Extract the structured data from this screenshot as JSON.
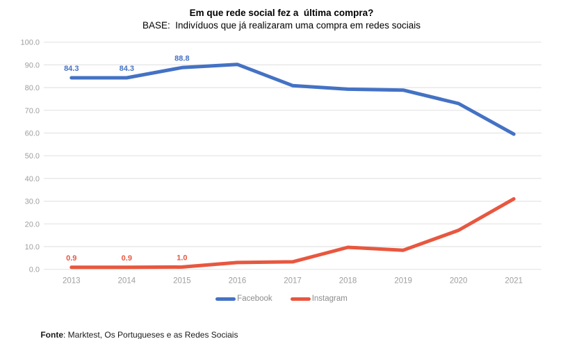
{
  "header": {
    "title": "Em que rede social fez a  última compra?",
    "subtitle": "BASE:  Indivíduos que já realizaram uma compra em redes sociais"
  },
  "chart_data": {
    "type": "line",
    "title": "Em que rede social fez a  última compra?",
    "subtitle": "BASE:  Indivíduos que já realizaram uma compra em redes sociais",
    "categories": [
      "2013",
      "2014",
      "2015",
      "2016",
      "2017",
      "2018",
      "2019",
      "2020",
      "2021"
    ],
    "series": [
      {
        "name": "Facebook",
        "color": "#4472C4",
        "values": [
          84.3,
          84.3,
          88.8,
          90.2,
          80.9,
          79.3,
          78.9,
          73.0,
          59.5
        ],
        "point_labels": [
          "84.3",
          "84.3",
          "88.8",
          null,
          null,
          null,
          null,
          null,
          null
        ]
      },
      {
        "name": "Instagram",
        "color": "#E8573F",
        "values": [
          0.9,
          0.9,
          1.0,
          3.0,
          3.3,
          9.7,
          8.4,
          17.2,
          31.0
        ],
        "point_labels": [
          "0.9",
          "0.9",
          "1.0",
          null,
          null,
          null,
          null,
          null,
          null
        ]
      }
    ],
    "ylim": [
      0,
      100
    ],
    "ytick_step": 10,
    "ytick_format": "one_decimal",
    "grid": "horizontal-only",
    "legend_position": "bottom",
    "colors": {
      "gridline": "#E4E4E4",
      "tick_text": "#9E9E9E",
      "legend_text": "#8C8C8C"
    }
  },
  "footer": {
    "source_label": "Fonte",
    "source_text": ": Marktest, Os Portugueses e as Redes Sociais"
  }
}
